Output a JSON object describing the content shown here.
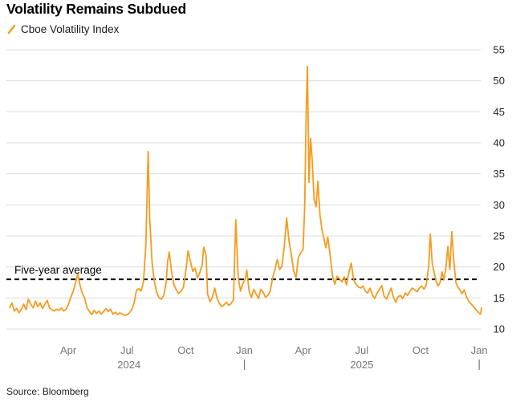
{
  "header": {
    "title": "Volatility Remains Subdued"
  },
  "legend": {
    "label": "Cboe Volatility Index"
  },
  "footer": {
    "source": "Source: Bloomberg"
  },
  "colors": {
    "line": "#F79B1E",
    "grid": "#DBDBDB",
    "axis_text": "#767676",
    "ytick_text": "#262626",
    "average_line": "#000000"
  },
  "chart_data": {
    "type": "line",
    "title": "Volatility Remains Subdued",
    "xlabel": "",
    "ylabel": "",
    "x_unit": "months since Jan 2024",
    "xlim": [
      0,
      24.2
    ],
    "ylim": [
      10,
      55
    ],
    "grid": true,
    "legend_position": "top-left",
    "yticks": [
      10,
      15,
      20,
      25,
      30,
      35,
      40,
      45,
      50,
      55
    ],
    "xticks": [
      {
        "t": 3,
        "label": "Apr"
      },
      {
        "t": 6,
        "label": "Jul"
      },
      {
        "t": 9,
        "label": "Oct"
      },
      {
        "t": 12,
        "label": "Jan"
      },
      {
        "t": 15,
        "label": "Apr"
      },
      {
        "t": 18,
        "label": "Jul"
      },
      {
        "t": 21,
        "label": "Oct"
      },
      {
        "t": 24,
        "label": "Jan"
      }
    ],
    "year_row": {
      "labels": [
        {
          "t": 6.1,
          "text": "2024"
        },
        {
          "t": 18.0,
          "text": "2025"
        }
      ],
      "ticks": [
        12,
        24
      ]
    },
    "average_line": {
      "label": "Five-year average",
      "value": 18
    },
    "series": [
      {
        "name": "Cboe Volatility Index",
        "color": "#F79B1E",
        "points": [
          [
            0,
            13.4
          ],
          [
            0.12,
            14.2
          ],
          [
            0.24,
            12.9
          ],
          [
            0.36,
            13.3
          ],
          [
            0.48,
            12.6
          ],
          [
            0.6,
            13.2
          ],
          [
            0.72,
            14.0
          ],
          [
            0.84,
            13.1
          ],
          [
            0.96,
            14.8
          ],
          [
            1.08,
            14.0
          ],
          [
            1.2,
            13.4
          ],
          [
            1.32,
            14.5
          ],
          [
            1.44,
            13.6
          ],
          [
            1.56,
            14.2
          ],
          [
            1.68,
            13.3
          ],
          [
            1.8,
            14.0
          ],
          [
            1.92,
            14.6
          ],
          [
            2.04,
            13.4
          ],
          [
            2.16,
            13.1
          ],
          [
            2.28,
            12.9
          ],
          [
            2.4,
            13.2
          ],
          [
            2.52,
            13.0
          ],
          [
            2.64,
            13.4
          ],
          [
            2.76,
            12.9
          ],
          [
            2.88,
            13.2
          ],
          [
            3.0,
            13.9
          ],
          [
            3.12,
            15.1
          ],
          [
            3.24,
            16.0
          ],
          [
            3.36,
            17.3
          ],
          [
            3.48,
            18.9
          ],
          [
            3.6,
            17.0
          ],
          [
            3.72,
            15.7
          ],
          [
            3.84,
            14.9
          ],
          [
            3.96,
            13.4
          ],
          [
            4.08,
            12.8
          ],
          [
            4.2,
            12.3
          ],
          [
            4.32,
            13.0
          ],
          [
            4.44,
            12.5
          ],
          [
            4.56,
            12.9
          ],
          [
            4.68,
            12.4
          ],
          [
            4.8,
            12.8
          ],
          [
            4.92,
            13.3
          ],
          [
            5.04,
            12.8
          ],
          [
            5.16,
            13.2
          ],
          [
            5.28,
            12.4
          ],
          [
            5.4,
            12.7
          ],
          [
            5.52,
            12.3
          ],
          [
            5.64,
            12.6
          ],
          [
            5.76,
            12.4
          ],
          [
            5.88,
            12.2
          ],
          [
            6.0,
            12.3
          ],
          [
            6.12,
            12.6
          ],
          [
            6.24,
            13.1
          ],
          [
            6.36,
            14.2
          ],
          [
            6.48,
            16.2
          ],
          [
            6.6,
            16.5
          ],
          [
            6.72,
            16.1
          ],
          [
            6.84,
            17.6
          ],
          [
            6.96,
            23.4
          ],
          [
            7.08,
            38.6
          ],
          [
            7.16,
            27.7
          ],
          [
            7.28,
            20.7
          ],
          [
            7.4,
            17.6
          ],
          [
            7.52,
            15.9
          ],
          [
            7.64,
            15.0
          ],
          [
            7.76,
            14.8
          ],
          [
            7.88,
            15.4
          ],
          [
            8.0,
            17.5
          ],
          [
            8.08,
            21.0
          ],
          [
            8.16,
            22.4
          ],
          [
            8.28,
            19.1
          ],
          [
            8.4,
            17.1
          ],
          [
            8.52,
            16.3
          ],
          [
            8.64,
            15.7
          ],
          [
            8.76,
            16.1
          ],
          [
            8.88,
            16.7
          ],
          [
            9.0,
            19.2
          ],
          [
            9.12,
            22.6
          ],
          [
            9.24,
            20.9
          ],
          [
            9.36,
            19.3
          ],
          [
            9.48,
            19.8
          ],
          [
            9.6,
            18.2
          ],
          [
            9.72,
            19.1
          ],
          [
            9.84,
            20.3
          ],
          [
            9.92,
            23.2
          ],
          [
            10.04,
            21.9
          ],
          [
            10.12,
            15.6
          ],
          [
            10.24,
            14.4
          ],
          [
            10.36,
            15.1
          ],
          [
            10.48,
            16.6
          ],
          [
            10.6,
            15.0
          ],
          [
            10.72,
            14.1
          ],
          [
            10.84,
            13.6
          ],
          [
            10.96,
            13.9
          ],
          [
            11.08,
            14.3
          ],
          [
            11.2,
            13.8
          ],
          [
            11.32,
            14.1
          ],
          [
            11.44,
            14.7
          ],
          [
            11.56,
            27.6
          ],
          [
            11.68,
            18.4
          ],
          [
            11.8,
            16.1
          ],
          [
            11.92,
            17.3
          ],
          [
            12.04,
            18.0
          ],
          [
            12.12,
            19.5
          ],
          [
            12.24,
            16.1
          ],
          [
            12.36,
            15.1
          ],
          [
            12.48,
            16.4
          ],
          [
            12.6,
            15.6
          ],
          [
            12.72,
            14.9
          ],
          [
            12.84,
            16.4
          ],
          [
            12.96,
            15.9
          ],
          [
            13.08,
            15.1
          ],
          [
            13.2,
            15.4
          ],
          [
            13.32,
            16.1
          ],
          [
            13.44,
            18.2
          ],
          [
            13.56,
            19.6
          ],
          [
            13.68,
            21.2
          ],
          [
            13.8,
            19.6
          ],
          [
            13.92,
            20.1
          ],
          [
            14.04,
            23.4
          ],
          [
            14.16,
            27.9
          ],
          [
            14.28,
            24.2
          ],
          [
            14.4,
            21.9
          ],
          [
            14.52,
            19.3
          ],
          [
            14.64,
            18.3
          ],
          [
            14.76,
            21.5
          ],
          [
            14.88,
            22.3
          ],
          [
            15.0,
            22.8
          ],
          [
            15.08,
            30.0
          ],
          [
            15.16,
            45.3
          ],
          [
            15.22,
            52.3
          ],
          [
            15.3,
            33.6
          ],
          [
            15.38,
            40.7
          ],
          [
            15.46,
            37.5
          ],
          [
            15.56,
            30.9
          ],
          [
            15.66,
            29.7
          ],
          [
            15.76,
            33.8
          ],
          [
            15.86,
            28.4
          ],
          [
            15.96,
            26.1
          ],
          [
            16.06,
            24.7
          ],
          [
            16.16,
            23.1
          ],
          [
            16.26,
            24.8
          ],
          [
            16.38,
            22.0
          ],
          [
            16.5,
            18.6
          ],
          [
            16.62,
            17.2
          ],
          [
            16.74,
            18.5
          ],
          [
            16.86,
            18.1
          ],
          [
            16.98,
            17.6
          ],
          [
            17.1,
            18.4
          ],
          [
            17.22,
            17.1
          ],
          [
            17.34,
            19.1
          ],
          [
            17.46,
            20.6
          ],
          [
            17.58,
            18.0
          ],
          [
            17.7,
            17.2
          ],
          [
            17.82,
            16.8
          ],
          [
            17.94,
            16.6
          ],
          [
            18.06,
            16.9
          ],
          [
            18.18,
            16.1
          ],
          [
            18.3,
            15.8
          ],
          [
            18.42,
            16.6
          ],
          [
            18.54,
            15.5
          ],
          [
            18.66,
            14.9
          ],
          [
            18.78,
            15.8
          ],
          [
            18.9,
            16.4
          ],
          [
            19.02,
            17.0
          ],
          [
            19.14,
            15.3
          ],
          [
            19.26,
            14.8
          ],
          [
            19.38,
            15.7
          ],
          [
            19.5,
            16.6
          ],
          [
            19.62,
            15.1
          ],
          [
            19.74,
            14.3
          ],
          [
            19.86,
            15.2
          ],
          [
            19.98,
            15.4
          ],
          [
            20.1,
            14.9
          ],
          [
            20.22,
            15.8
          ],
          [
            20.34,
            15.4
          ],
          [
            20.46,
            16.1
          ],
          [
            20.58,
            16.6
          ],
          [
            20.7,
            16.3
          ],
          [
            20.82,
            16.0
          ],
          [
            20.94,
            16.6
          ],
          [
            21.06,
            16.9
          ],
          [
            21.18,
            16.4
          ],
          [
            21.3,
            17.2
          ],
          [
            21.42,
            20.1
          ],
          [
            21.5,
            25.3
          ],
          [
            21.6,
            20.6
          ],
          [
            21.7,
            19.1
          ],
          [
            21.8,
            17.6
          ],
          [
            21.9,
            16.9
          ],
          [
            22.0,
            17.5
          ],
          [
            22.1,
            19.2
          ],
          [
            22.2,
            17.9
          ],
          [
            22.3,
            19.9
          ],
          [
            22.4,
            23.3
          ],
          [
            22.5,
            19.6
          ],
          [
            22.6,
            25.7
          ],
          [
            22.7,
            21.1
          ],
          [
            22.8,
            17.6
          ],
          [
            22.9,
            16.8
          ],
          [
            23.0,
            16.4
          ],
          [
            23.12,
            15.7
          ],
          [
            23.24,
            16.3
          ],
          [
            23.36,
            15.1
          ],
          [
            23.48,
            14.4
          ],
          [
            23.6,
            14.0
          ],
          [
            23.72,
            13.6
          ],
          [
            23.84,
            13.1
          ],
          [
            23.95,
            12.7
          ],
          [
            24.02,
            12.5
          ],
          [
            24.07,
            12.4
          ],
          [
            24.12,
            13.4
          ]
        ]
      }
    ]
  }
}
